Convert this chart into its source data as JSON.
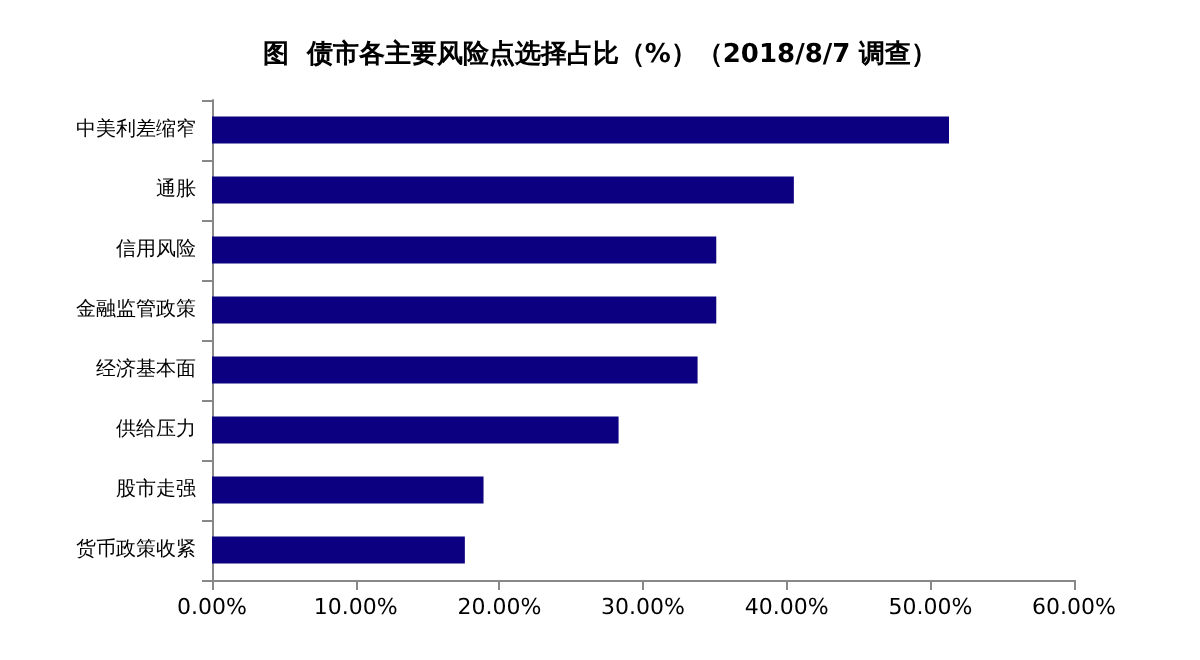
{
  "chart_data": {
    "type": "bar",
    "orientation": "horizontal",
    "title": "图  债市各主要风险点选择占比（%）（2018/8/7 调查）",
    "categories": [
      "中美利差缩窄",
      "通胀",
      "信用风险",
      "金融监管政策",
      "经济基本面",
      "供给压力",
      "股市走强",
      "货币政策收紧"
    ],
    "values": [
      51.3,
      40.5,
      35.1,
      35.1,
      33.8,
      28.3,
      18.9,
      17.6
    ],
    "color": "#0d0080",
    "xlim": [
      0,
      60
    ],
    "xticks": [
      {
        "value": 0,
        "label": "0.00%"
      },
      {
        "value": 10,
        "label": "10.00%"
      },
      {
        "value": 20,
        "label": "20.00%"
      },
      {
        "value": 30,
        "label": "30.00%"
      },
      {
        "value": 40,
        "label": "40.00%"
      },
      {
        "value": 50,
        "label": "50.00%"
      },
      {
        "value": 60,
        "label": "60.00%"
      }
    ],
    "grid": false
  }
}
